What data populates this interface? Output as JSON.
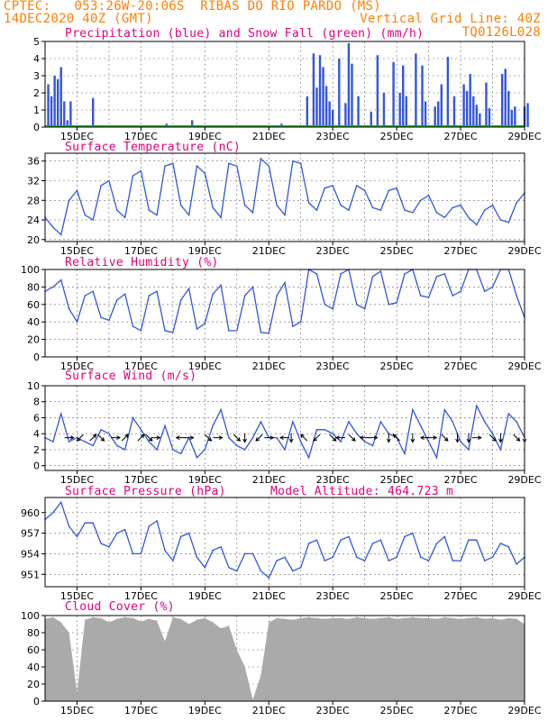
{
  "header": {
    "line1_left": "CPTEC:   053:26W-20:06S  RIBAS DO RIO PARDO (MS)",
    "line2_left": "14DEC2020 40Z (GMT)",
    "line2_right": "Vertical Grid Line: 40Z",
    "line3_right": "TQ0126L028"
  },
  "colors": {
    "header": "#ff7f00",
    "title": "#e0007f",
    "series": "#3355dd",
    "snow": "#22aa22",
    "wind_arrows": "#000000",
    "cloud": "#aaaaaa"
  },
  "time_axis": {
    "ticks": [
      "15DEC",
      "17DEC",
      "19DEC",
      "21DEC",
      "23DEC",
      "25DEC",
      "27DEC",
      "29DEC"
    ]
  },
  "chart_data": [
    {
      "type": "bar",
      "title": "Precipitation (blue) and Snow Fall (green) (mm/h)",
      "ylim": [
        0,
        5
      ],
      "yticks": [
        "0",
        "1",
        "2",
        "3",
        "4",
        "5"
      ],
      "x_days": [
        14.1,
        14.2,
        14.3,
        14.4,
        14.5,
        14.6,
        14.7,
        14.8,
        15.5,
        17.8,
        18.6,
        20.4,
        21.4,
        22.2,
        22.4,
        22.5,
        22.6,
        22.7,
        22.8,
        22.9,
        23.0,
        23.2,
        23.4,
        23.5,
        23.6,
        23.8,
        24.2,
        24.4,
        24.6,
        24.9,
        25.1,
        25.2,
        25.3,
        25.6,
        25.8,
        25.9,
        26.2,
        26.3,
        26.4,
        26.6,
        26.8,
        27.1,
        27.2,
        27.3,
        27.4,
        27.5,
        27.6,
        27.8,
        27.9,
        28.3,
        28.4,
        28.5,
        28.6,
        28.7,
        29.0,
        29.1
      ],
      "values": [
        2.5,
        1.8,
        3.0,
        2.8,
        3.5,
        1.5,
        0.4,
        1.5,
        1.7,
        0.2,
        0.4,
        0.1,
        0.2,
        1.8,
        4.3,
        2.3,
        4.2,
        3.5,
        2.4,
        1.5,
        1.0,
        4.0,
        1.4,
        4.9,
        3.7,
        1.8,
        0.9,
        4.2,
        2.0,
        3.8,
        2.0,
        3.6,
        1.8,
        4.3,
        3.6,
        1.5,
        1.2,
        1.5,
        2.5,
        4.1,
        1.8,
        2.5,
        2.1,
        3.1,
        1.8,
        1.3,
        0.8,
        2.6,
        1.1,
        3.1,
        3.4,
        2.1,
        1.0,
        1.2,
        1.2,
        1.4
      ]
    },
    {
      "type": "line",
      "title": "Surface Temperature (nC)",
      "ylim": [
        19.6,
        37.6
      ],
      "yticks": [
        "20",
        "24",
        "28",
        "32",
        "36"
      ],
      "x_days": [
        14.0,
        14.25,
        14.5,
        14.75,
        15.0,
        15.25,
        15.5,
        15.75,
        16.0,
        16.25,
        16.5,
        16.75,
        17.0,
        17.25,
        17.5,
        17.75,
        18.0,
        18.25,
        18.5,
        18.75,
        19.0,
        19.25,
        19.5,
        19.75,
        20.0,
        20.25,
        20.5,
        20.75,
        21.0,
        21.25,
        21.5,
        21.75,
        22.0,
        22.25,
        22.5,
        22.75,
        23.0,
        23.25,
        23.5,
        23.75,
        24.0,
        24.25,
        24.5,
        24.75,
        25.0,
        25.25,
        25.5,
        25.75,
        26.0,
        26.25,
        26.5,
        26.75,
        27.0,
        27.25,
        27.5,
        27.75,
        28.0,
        28.25,
        28.5,
        28.75,
        29.0
      ],
      "values": [
        24.5,
        22.5,
        21.0,
        28.0,
        30.0,
        25.0,
        24.0,
        31.0,
        32.0,
        26.0,
        24.5,
        33.0,
        34.0,
        26.0,
        25.0,
        35.0,
        35.5,
        27.0,
        25.0,
        35.0,
        33.5,
        26.5,
        24.5,
        35.5,
        35.0,
        27.0,
        25.5,
        36.5,
        35.0,
        27.0,
        25.0,
        36.0,
        35.5,
        27.5,
        26.0,
        30.5,
        31.0,
        27.0,
        26.0,
        31.0,
        30.0,
        26.5,
        26.0,
        30.0,
        30.5,
        26.0,
        25.5,
        28.0,
        29.0,
        25.5,
        24.5,
        26.5,
        27.0,
        24.5,
        23.0,
        26.0,
        27.0,
        24.0,
        23.5,
        27.5,
        29.5
      ]
    },
    {
      "type": "line",
      "title": "Relative Humidity (%)",
      "ylim": [
        0,
        100
      ],
      "yticks": [
        "0",
        "20",
        "40",
        "60",
        "80",
        "100"
      ],
      "x_days": [
        14.0,
        14.25,
        14.5,
        14.75,
        15.0,
        15.25,
        15.5,
        15.75,
        16.0,
        16.25,
        16.5,
        16.75,
        17.0,
        17.25,
        17.5,
        17.75,
        18.0,
        18.25,
        18.5,
        18.75,
        19.0,
        19.25,
        19.5,
        19.75,
        20.0,
        20.25,
        20.5,
        20.75,
        21.0,
        21.25,
        21.5,
        21.75,
        22.0,
        22.25,
        22.5,
        22.75,
        23.0,
        23.25,
        23.5,
        23.75,
        24.0,
        24.25,
        24.5,
        24.75,
        25.0,
        25.25,
        25.5,
        25.75,
        26.0,
        26.25,
        26.5,
        26.75,
        27.0,
        27.25,
        27.5,
        27.75,
        28.0,
        28.25,
        28.5,
        28.75,
        29.0
      ],
      "values": [
        75.0,
        80.0,
        88.0,
        55.0,
        40.0,
        70.0,
        75.0,
        45.0,
        42.0,
        65.0,
        72.0,
        35.0,
        30.0,
        70.0,
        75.0,
        30.0,
        28.0,
        65.0,
        78.0,
        32.0,
        38.0,
        72.0,
        82.0,
        30.0,
        30.0,
        70.0,
        80.0,
        28.0,
        27.0,
        70.0,
        85.0,
        35.0,
        40.0,
        100.0,
        95.0,
        60.0,
        55.0,
        95.0,
        100.0,
        60.0,
        55.0,
        92.0,
        98.0,
        60.0,
        62.0,
        95.0,
        100.0,
        70.0,
        68.0,
        92.0,
        95.0,
        70.0,
        75.0,
        100.0,
        100.0,
        75.0,
        80.0,
        100.0,
        100.0,
        70.0,
        45.0
      ]
    },
    {
      "type": "line",
      "title": "Surface Wind (m/s)",
      "ylim": [
        -0.6,
        10
      ],
      "yticks": [
        "0",
        "2",
        "4",
        "6",
        "8",
        "10"
      ],
      "x_days": [
        14.0,
        14.25,
        14.5,
        14.75,
        15.0,
        15.25,
        15.5,
        15.75,
        16.0,
        16.25,
        16.5,
        16.75,
        17.0,
        17.25,
        17.5,
        17.75,
        18.0,
        18.25,
        18.5,
        18.75,
        19.0,
        19.25,
        19.5,
        19.75,
        20.0,
        20.25,
        20.5,
        20.75,
        21.0,
        21.25,
        21.5,
        21.75,
        22.0,
        22.25,
        22.5,
        22.75,
        23.0,
        23.25,
        23.5,
        23.75,
        24.0,
        24.25,
        24.5,
        24.75,
        25.0,
        25.25,
        25.5,
        25.75,
        26.0,
        26.25,
        26.5,
        26.75,
        27.0,
        27.25,
        27.5,
        27.75,
        28.0,
        28.25,
        28.5,
        28.75,
        29.0
      ],
      "values": [
        3.5,
        3.0,
        6.5,
        3.0,
        3.5,
        3.0,
        2.5,
        4.5,
        4.0,
        2.5,
        2.0,
        6.0,
        4.5,
        3.0,
        2.0,
        5.0,
        2.0,
        1.5,
        3.5,
        1.0,
        2.0,
        5.0,
        7.0,
        3.5,
        2.5,
        2.0,
        3.5,
        5.5,
        3.5,
        3.5,
        2.0,
        5.5,
        3.0,
        1.0,
        4.5,
        4.5,
        4.0,
        3.0,
        5.5,
        4.0,
        3.0,
        2.5,
        5.5,
        4.0,
        3.5,
        1.5,
        7.0,
        5.0,
        3.0,
        1.0,
        7.0,
        5.5,
        3.0,
        2.0,
        7.5,
        5.5,
        4.0,
        2.0,
        6.5,
        5.5,
        3.5
      ]
    },
    {
      "type": "line",
      "title": "Surface Pressure (hPa)",
      "annotation": "Model Altitude: 464.723 m",
      "ylim": [
        949.2,
        962.2
      ],
      "yticks": [
        "951",
        "954",
        "957",
        "960"
      ],
      "x_days": [
        14.0,
        14.25,
        14.5,
        14.75,
        15.0,
        15.25,
        15.5,
        15.75,
        16.0,
        16.25,
        16.5,
        16.75,
        17.0,
        17.25,
        17.5,
        17.75,
        18.0,
        18.25,
        18.5,
        18.75,
        19.0,
        19.25,
        19.5,
        19.75,
        20.0,
        20.25,
        20.5,
        20.75,
        21.0,
        21.25,
        21.5,
        21.75,
        22.0,
        22.25,
        22.5,
        22.75,
        23.0,
        23.25,
        23.5,
        23.75,
        24.0,
        24.25,
        24.5,
        24.75,
        25.0,
        25.25,
        25.5,
        25.75,
        26.0,
        26.25,
        26.5,
        26.75,
        27.0,
        27.25,
        27.5,
        27.75,
        28.0,
        28.25,
        28.5,
        28.75,
        29.0
      ],
      "values": [
        959.0,
        960.0,
        961.5,
        958.0,
        956.5,
        958.5,
        958.5,
        955.5,
        955.0,
        957.0,
        957.5,
        954.0,
        954.0,
        958.0,
        958.8,
        954.5,
        953.0,
        956.5,
        957.0,
        953.5,
        952.0,
        954.5,
        955.0,
        952.0,
        951.5,
        954.0,
        954.0,
        951.5,
        950.5,
        953.0,
        953.5,
        951.5,
        952.0,
        955.5,
        956.0,
        953.0,
        953.5,
        956.0,
        956.5,
        953.5,
        953.0,
        955.5,
        956.0,
        953.0,
        953.5,
        956.5,
        957.0,
        953.5,
        953.0,
        955.5,
        956.5,
        953.0,
        953.0,
        956.0,
        956.0,
        953.0,
        953.5,
        955.5,
        955.0,
        952.5,
        953.5
      ]
    },
    {
      "type": "area",
      "title": "Cloud Cover (%)",
      "ylim": [
        0,
        100
      ],
      "yticks": [
        "0",
        "20",
        "40",
        "60",
        "80",
        "100"
      ],
      "x_days": [
        14.0,
        14.25,
        14.5,
        14.75,
        15.0,
        15.25,
        15.5,
        15.75,
        16.0,
        16.25,
        16.5,
        16.75,
        17.0,
        17.25,
        17.5,
        17.75,
        18.0,
        18.25,
        18.5,
        18.75,
        19.0,
        19.25,
        19.5,
        19.75,
        20.0,
        20.25,
        20.5,
        20.75,
        21.0,
        21.25,
        21.5,
        21.75,
        22.0,
        22.25,
        22.5,
        22.75,
        23.0,
        23.25,
        23.5,
        23.75,
        24.0,
        24.25,
        24.5,
        24.75,
        25.0,
        25.25,
        25.5,
        25.75,
        26.0,
        26.25,
        26.5,
        26.75,
        27.0,
        27.25,
        27.5,
        27.75,
        28.0,
        28.25,
        28.5,
        28.75,
        29.0
      ],
      "values": [
        96.0,
        98.0,
        92.0,
        80.0,
        10.0,
        95.0,
        98.0,
        97.0,
        92.0,
        96.0,
        98.0,
        97.0,
        93.0,
        96.0,
        94.0,
        70.0,
        98.0,
        96.0,
        90.0,
        95.0,
        97.0,
        92.0,
        85.0,
        88.0,
        60.0,
        40.0,
        2.0,
        30.0,
        92.0,
        97.0,
        96.0,
        95.0,
        97.0,
        98.0,
        97.0,
        96.0,
        97.0,
        97.0,
        96.0,
        98.0,
        97.0,
        96.0,
        97.0,
        98.0,
        96.0,
        97.0,
        98.0,
        97.0,
        97.0,
        96.0,
        98.0,
        97.0,
        96.0,
        97.0,
        98.0,
        96.0,
        97.0,
        95.0,
        97.0,
        96.0,
        90.0
      ]
    }
  ],
  "wind_arrows": [
    {
      "day": 14.75,
      "dir": "E"
    },
    {
      "day": 15.1,
      "dir": "SW"
    },
    {
      "day": 15.5,
      "dir": "NE"
    },
    {
      "day": 15.75,
      "dir": "SE"
    },
    {
      "day": 16.2,
      "dir": "E"
    },
    {
      "day": 16.5,
      "dir": "NE"
    },
    {
      "day": 17.0,
      "dir": "NE"
    },
    {
      "day": 17.25,
      "dir": "SE"
    },
    {
      "day": 17.45,
      "dir": "E"
    },
    {
      "day": 18.25,
      "dir": "W"
    },
    {
      "day": 18.5,
      "dir": "E"
    },
    {
      "day": 19.1,
      "dir": "SE"
    },
    {
      "day": 19.4,
      "dir": "E"
    },
    {
      "day": 20.0,
      "dir": "SE"
    },
    {
      "day": 20.25,
      "dir": "S"
    },
    {
      "day": 20.7,
      "dir": "SW"
    },
    {
      "day": 21.0,
      "dir": "E"
    },
    {
      "day": 21.5,
      "dir": "W"
    },
    {
      "day": 21.7,
      "dir": "S"
    },
    {
      "day": 22.1,
      "dir": "NW"
    },
    {
      "day": 22.5,
      "dir": "SW"
    },
    {
      "day": 23.0,
      "dir": "SE"
    },
    {
      "day": 23.25,
      "dir": "W"
    },
    {
      "day": 23.6,
      "dir": "SE"
    },
    {
      "day": 24.0,
      "dir": "W"
    },
    {
      "day": 24.25,
      "dir": "E"
    },
    {
      "day": 24.75,
      "dir": "S"
    },
    {
      "day": 25.0,
      "dir": "NW"
    },
    {
      "day": 25.5,
      "dir": "S"
    },
    {
      "day": 25.9,
      "dir": "W"
    },
    {
      "day": 26.1,
      "dir": "E"
    },
    {
      "day": 26.5,
      "dir": "SE"
    },
    {
      "day": 26.9,
      "dir": "S"
    },
    {
      "day": 27.25,
      "dir": "S"
    },
    {
      "day": 27.5,
      "dir": "E"
    },
    {
      "day": 28.0,
      "dir": "SE"
    },
    {
      "day": 28.25,
      "dir": "S"
    },
    {
      "day": 28.75,
      "dir": "SE"
    },
    {
      "day": 29.0,
      "dir": "S"
    }
  ]
}
